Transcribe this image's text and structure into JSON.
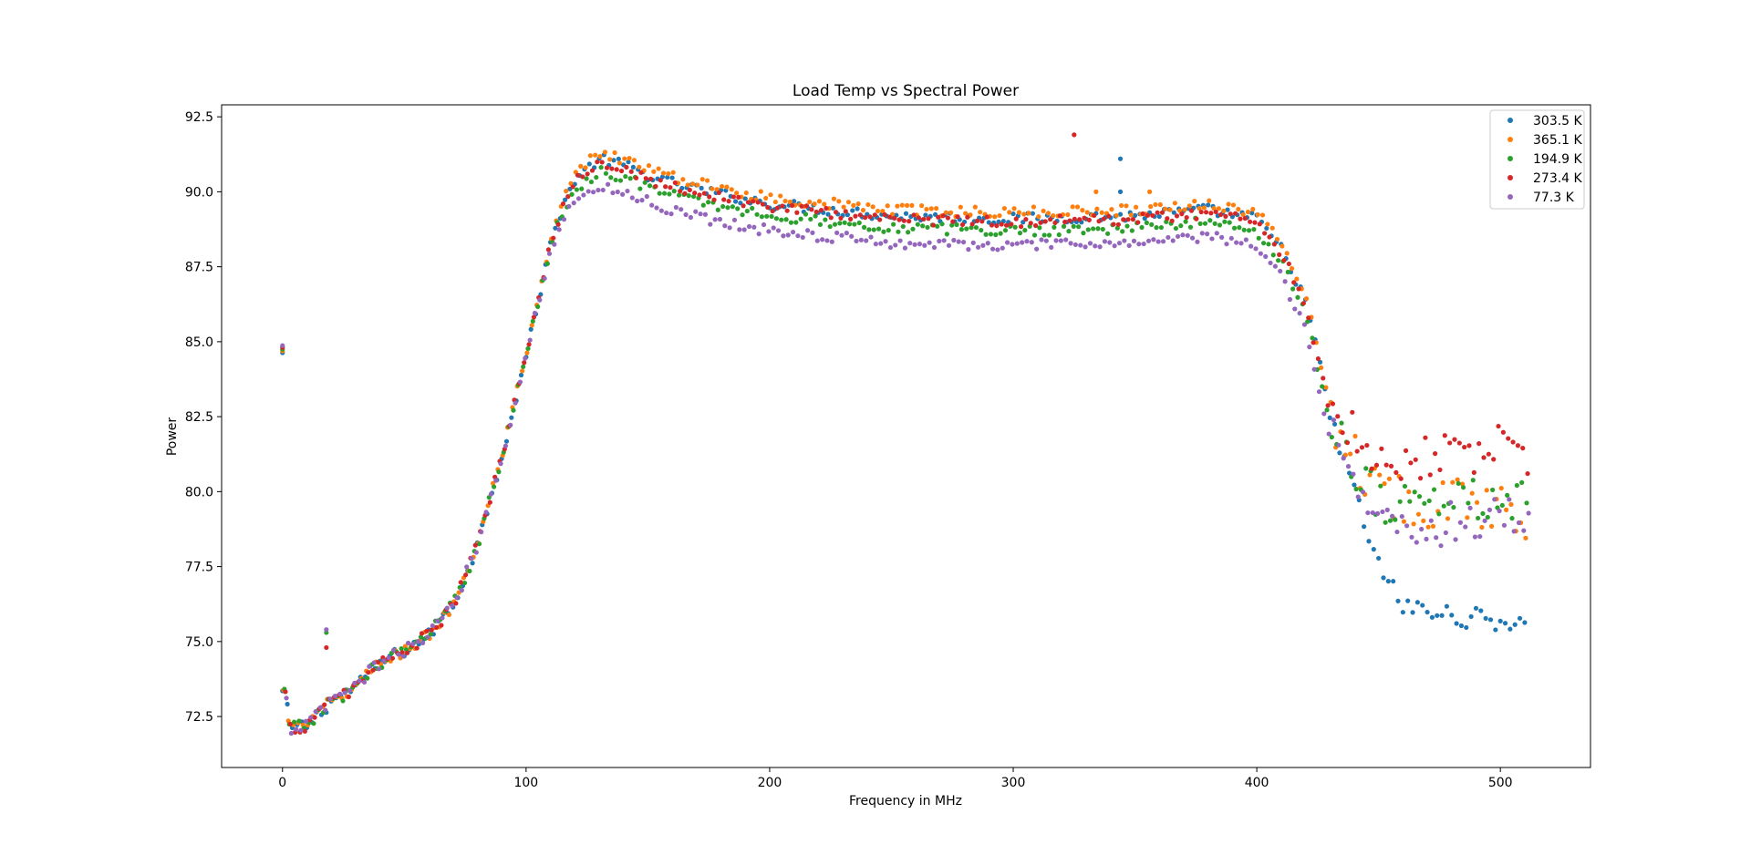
{
  "chart_data": {
    "type": "scatter",
    "title": "Load Temp vs Spectral Power",
    "xlabel": "Frequency in MHz",
    "ylabel": "Power",
    "xlim": [
      -25,
      537
    ],
    "ylim": [
      70.8,
      92.9
    ],
    "xticks": [
      0,
      100,
      200,
      300,
      400,
      500
    ],
    "yticks": [
      72.5,
      75.0,
      77.5,
      80.0,
      82.5,
      85.0,
      87.5,
      90.0,
      92.5
    ],
    "grid": false,
    "legend_position": "top-right",
    "x_range": [
      0,
      511
    ],
    "x_step": 2,
    "series": [
      {
        "name": "303.5 K",
        "color": "#1f77b4",
        "plateau": 89.2,
        "tail": [
          [
            430,
            82.5
          ],
          [
            440,
            80.0
          ],
          [
            450,
            77.5
          ],
          [
            460,
            76.2
          ],
          [
            475,
            75.9
          ],
          [
            511,
            75.6
          ]
        ],
        "outliers": [
          [
            344,
            91.1
          ],
          [
            344,
            90.0
          ]
        ]
      },
      {
        "name": "365.1 K",
        "color": "#ff7f0e",
        "plateau": 89.4,
        "tail": [
          [
            430,
            82.6
          ],
          [
            440,
            81.2
          ],
          [
            450,
            80.0
          ],
          [
            470,
            79.6
          ],
          [
            490,
            79.6
          ],
          [
            511,
            79.2
          ]
        ],
        "outliers": [
          [
            334,
            90.0
          ],
          [
            356,
            90.0
          ]
        ]
      },
      {
        "name": "194.9 K",
        "color": "#2ca02c",
        "plateau": 88.8,
        "tail": [
          [
            430,
            82.6
          ],
          [
            440,
            80.9
          ],
          [
            450,
            79.7
          ],
          [
            470,
            79.6
          ],
          [
            490,
            79.8
          ],
          [
            511,
            79.6
          ]
        ],
        "outliers": [
          [
            18,
            75.3
          ]
        ]
      },
      {
        "name": "273.4 K",
        "color": "#d62728",
        "plateau": 89.1,
        "tail": [
          [
            430,
            83.2
          ],
          [
            440,
            82.0
          ],
          [
            450,
            81.0
          ],
          [
            470,
            81.2
          ],
          [
            490,
            81.4
          ],
          [
            511,
            81.4
          ]
        ],
        "outliers": [
          [
            325,
            91.9
          ],
          [
            18,
            74.8
          ]
        ]
      },
      {
        "name": "77.3 K",
        "color": "#9467bd",
        "plateau": 88.3,
        "tail": [
          [
            430,
            82.3
          ],
          [
            440,
            80.4
          ],
          [
            450,
            79.0
          ],
          [
            470,
            78.8
          ],
          [
            490,
            79.0
          ],
          [
            511,
            79.3
          ]
        ],
        "outliers": [
          [
            18,
            75.4
          ]
        ]
      }
    ],
    "dc_spike": [
      0,
      84.75
    ],
    "common_curve": [
      [
        1,
        73.3
      ],
      [
        3,
        72.1
      ],
      [
        10,
        72.2
      ],
      [
        20,
        73.0
      ],
      [
        30,
        73.5
      ],
      [
        40,
        74.3
      ],
      [
        50,
        74.7
      ],
      [
        60,
        75.2
      ],
      [
        70,
        76.2
      ],
      [
        80,
        78.2
      ],
      [
        90,
        81.2
      ],
      [
        100,
        84.5
      ],
      [
        110,
        88.2
      ],
      [
        115,
        89.5
      ],
      [
        120,
        90.3
      ],
      [
        130,
        91.0
      ],
      [
        140,
        90.8
      ],
      [
        155,
        90.3
      ],
      [
        175,
        89.9
      ],
      [
        200,
        89.5
      ],
      [
        250,
        89.1
      ],
      [
        300,
        89.0
      ],
      [
        350,
        89.1
      ],
      [
        380,
        89.3
      ],
      [
        400,
        89.0
      ],
      [
        410,
        88.0
      ],
      [
        420,
        86.3
      ],
      [
        430,
        82.6
      ]
    ]
  }
}
